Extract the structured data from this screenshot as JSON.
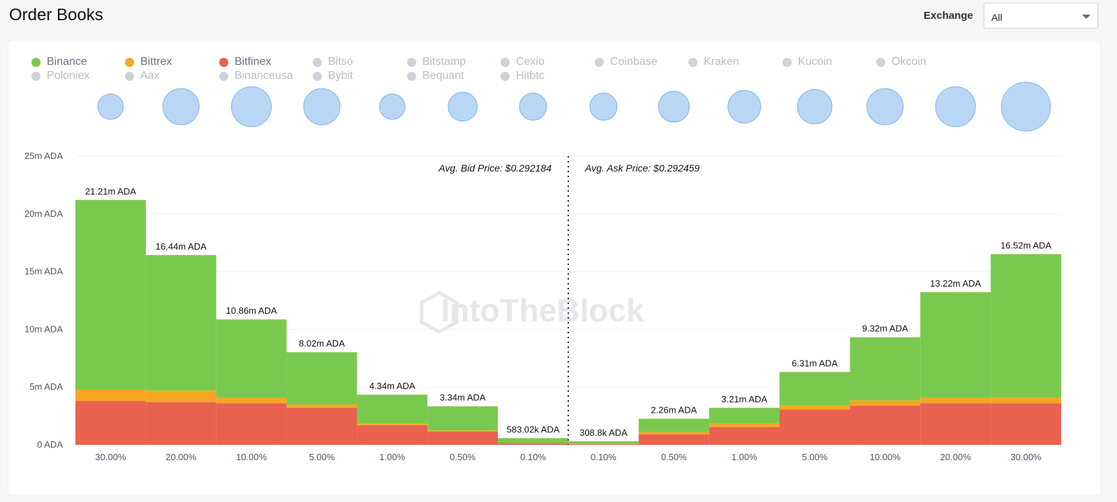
{
  "header": {
    "title": "Order Books",
    "exchange_label": "Exchange",
    "exchange_value": "All"
  },
  "legend": [
    {
      "name": "Binance",
      "active": true,
      "color": "#7ac94f"
    },
    {
      "name": "Bittrex",
      "active": true,
      "color": "#f5a623"
    },
    {
      "name": "Bitfinex",
      "active": true,
      "color": "#e8624f"
    },
    {
      "name": "Bitso",
      "active": false,
      "color": "#cfd2d6"
    },
    {
      "name": "Bitstamp",
      "active": false,
      "color": "#cfd2d6"
    },
    {
      "name": "Cexio",
      "active": false,
      "color": "#cfd2d6"
    },
    {
      "name": "Coinbase",
      "active": false,
      "color": "#cfd2d6"
    },
    {
      "name": "Kraken",
      "active": false,
      "color": "#cfd2d6"
    },
    {
      "name": "Kucoin",
      "active": false,
      "color": "#cfd2d6"
    },
    {
      "name": "Okcoin",
      "active": false,
      "color": "#cfd2d6"
    },
    {
      "name": "Poloniex",
      "active": false,
      "color": "#cfd2d6"
    },
    {
      "name": "Aax",
      "active": false,
      "color": "#cfd2d6"
    },
    {
      "name": "Binanceusa",
      "active": false,
      "color": "#cfd2d6"
    },
    {
      "name": "Bybit",
      "active": false,
      "color": "#cfd2d6"
    },
    {
      "name": "Bequant",
      "active": false,
      "color": "#cfd2d6"
    },
    {
      "name": "Hitbtc",
      "active": false,
      "color": "#cfd2d6"
    }
  ],
  "colors": {
    "binance": "#7ac94f",
    "bittrex": "#f5a623",
    "bitfinex": "#e8624f",
    "bubble_fill": "#b9d7f5",
    "bubble_stroke": "#7fb2e8",
    "legend_active_text": "#6b7280",
    "legend_inactive_text": "#b8bcc2",
    "watermark": "#e6e7ea"
  },
  "watermark": "IntoTheBlock",
  "chart_data": {
    "type": "bar",
    "title": "",
    "xlabel": "",
    "ylabel": "",
    "y_unit": "ADA",
    "ylim": [
      0,
      25000000
    ],
    "yticks": [
      "0 ADA",
      "5m ADA",
      "10m ADA",
      "15m ADA",
      "20m ADA",
      "25m ADA"
    ],
    "ytick_values": [
      0,
      5000000,
      10000000,
      15000000,
      20000000,
      25000000
    ],
    "grid": true,
    "categories": [
      "30.00%",
      "20.00%",
      "10.00%",
      "5.00%",
      "1.00%",
      "0.50%",
      "0.10%",
      "0.10%",
      "0.50%",
      "1.00%",
      "5.00%",
      "10.00%",
      "20.00%",
      "30.00%"
    ],
    "sides": [
      "bid",
      "bid",
      "bid",
      "bid",
      "bid",
      "bid",
      "bid",
      "ask",
      "ask",
      "ask",
      "ask",
      "ask",
      "ask",
      "ask"
    ],
    "series": [
      {
        "name": "Bitfinex",
        "values": [
          3800000,
          3700000,
          3600000,
          3200000,
          1700000,
          1150000,
          150000,
          80000,
          900000,
          1550000,
          3050000,
          3400000,
          3600000,
          3600000
        ]
      },
      {
        "name": "Bittrex",
        "values": [
          1000000,
          1000000,
          450000,
          300000,
          150000,
          100000,
          30000,
          30000,
          200000,
          300000,
          350000,
          450000,
          450000,
          500000
        ]
      },
      {
        "name": "Binance",
        "values": [
          16410000,
          11740000,
          6810000,
          4520000,
          2490000,
          2090000,
          403020,
          198800,
          1160000,
          1360000,
          2910000,
          5470000,
          9170000,
          12420000
        ]
      }
    ],
    "totals": [
      21210000,
      16440000,
      10860000,
      8020000,
      4340000,
      3340000,
      583020,
      308800,
      2260000,
      3210000,
      6310000,
      9320000,
      13220000,
      16520000
    ],
    "data_labels": [
      "21.21m ADA",
      "16.44m ADA",
      "10.86m ADA",
      "8.02m ADA",
      "4.34m ADA",
      "3.34m ADA",
      "583.02k ADA",
      "308.8k ADA",
      "2.26m ADA",
      "3.21m ADA",
      "6.31m ADA",
      "9.32m ADA",
      "13.22m ADA",
      "16.52m ADA"
    ],
    "bubble_sizes": [
      0.7,
      1.0,
      1.1,
      1.0,
      0.7,
      0.8,
      0.75,
      0.75,
      0.85,
      0.9,
      0.95,
      1.0,
      1.1,
      1.35
    ],
    "annotations": {
      "bid": "Avg. Bid Price: $0.292184",
      "ask": "Avg. Ask Price: $0.292459"
    }
  }
}
